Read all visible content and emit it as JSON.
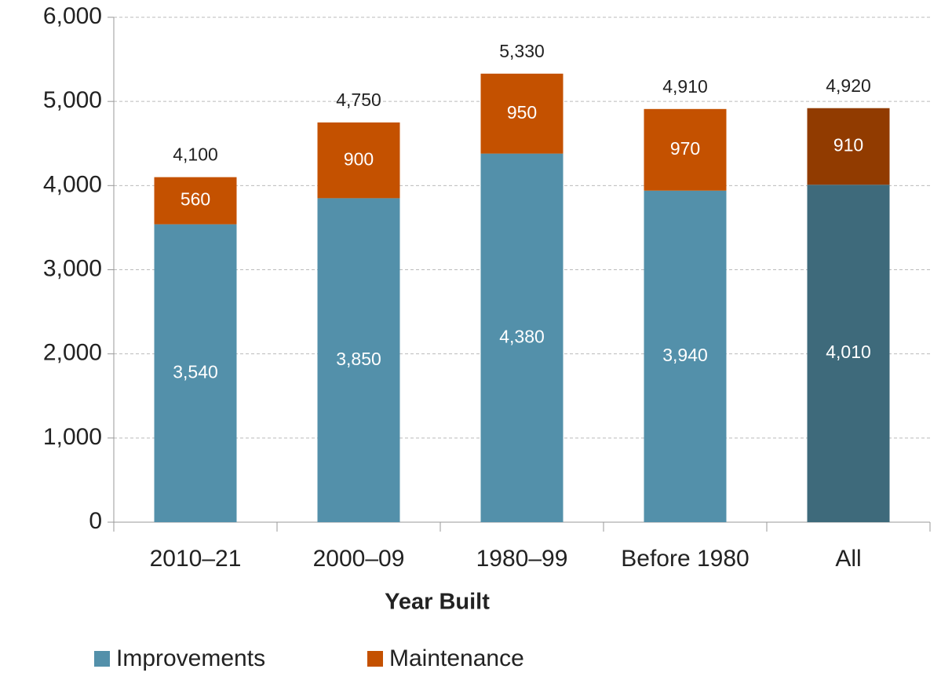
{
  "chart_data": {
    "type": "stacked_bar",
    "x_label": "Year Built",
    "categories": [
      "2010–21",
      "2000–09",
      "1980–99",
      "Before 1980",
      "All"
    ],
    "series": [
      {
        "name": "Improvements",
        "color": "#5390aa",
        "colors": [
          "#5390aa",
          "#5390aa",
          "#5390aa",
          "#5390aa",
          "#3e6a7b"
        ],
        "values": [
          3540,
          3850,
          4380,
          3940,
          4010
        ],
        "value_labels": [
          "3,540",
          "3,850",
          "4,380",
          "3,940",
          "4,010"
        ]
      },
      {
        "name": "Maintenance",
        "color": "#c45100",
        "colors": [
          "#c45100",
          "#c45100",
          "#c45100",
          "#c45100",
          "#913b00"
        ],
        "values": [
          560,
          900,
          950,
          970,
          910
        ],
        "value_labels": [
          "560",
          "900",
          "950",
          "970",
          "910"
        ]
      }
    ],
    "totals": {
      "values": [
        4100,
        4750,
        5330,
        4910,
        4920
      ],
      "value_labels": [
        "4,100",
        "4,750",
        "5,330",
        "4,910",
        "4,920"
      ]
    },
    "ylim": [
      0,
      6000
    ],
    "yticks": [
      0,
      {
        "value": 1000,
        "label": "1,000"
      },
      {
        "value": 2000,
        "label": "2,000"
      },
      {
        "value": 3000,
        "label": "3,000"
      },
      {
        "value": 4000,
        "label": "4,000"
      },
      {
        "value": 5000,
        "label": "5,000"
      },
      {
        "value": 6000,
        "label": "6,000"
      }
    ],
    "grid": true,
    "legend": "bottom-left"
  }
}
